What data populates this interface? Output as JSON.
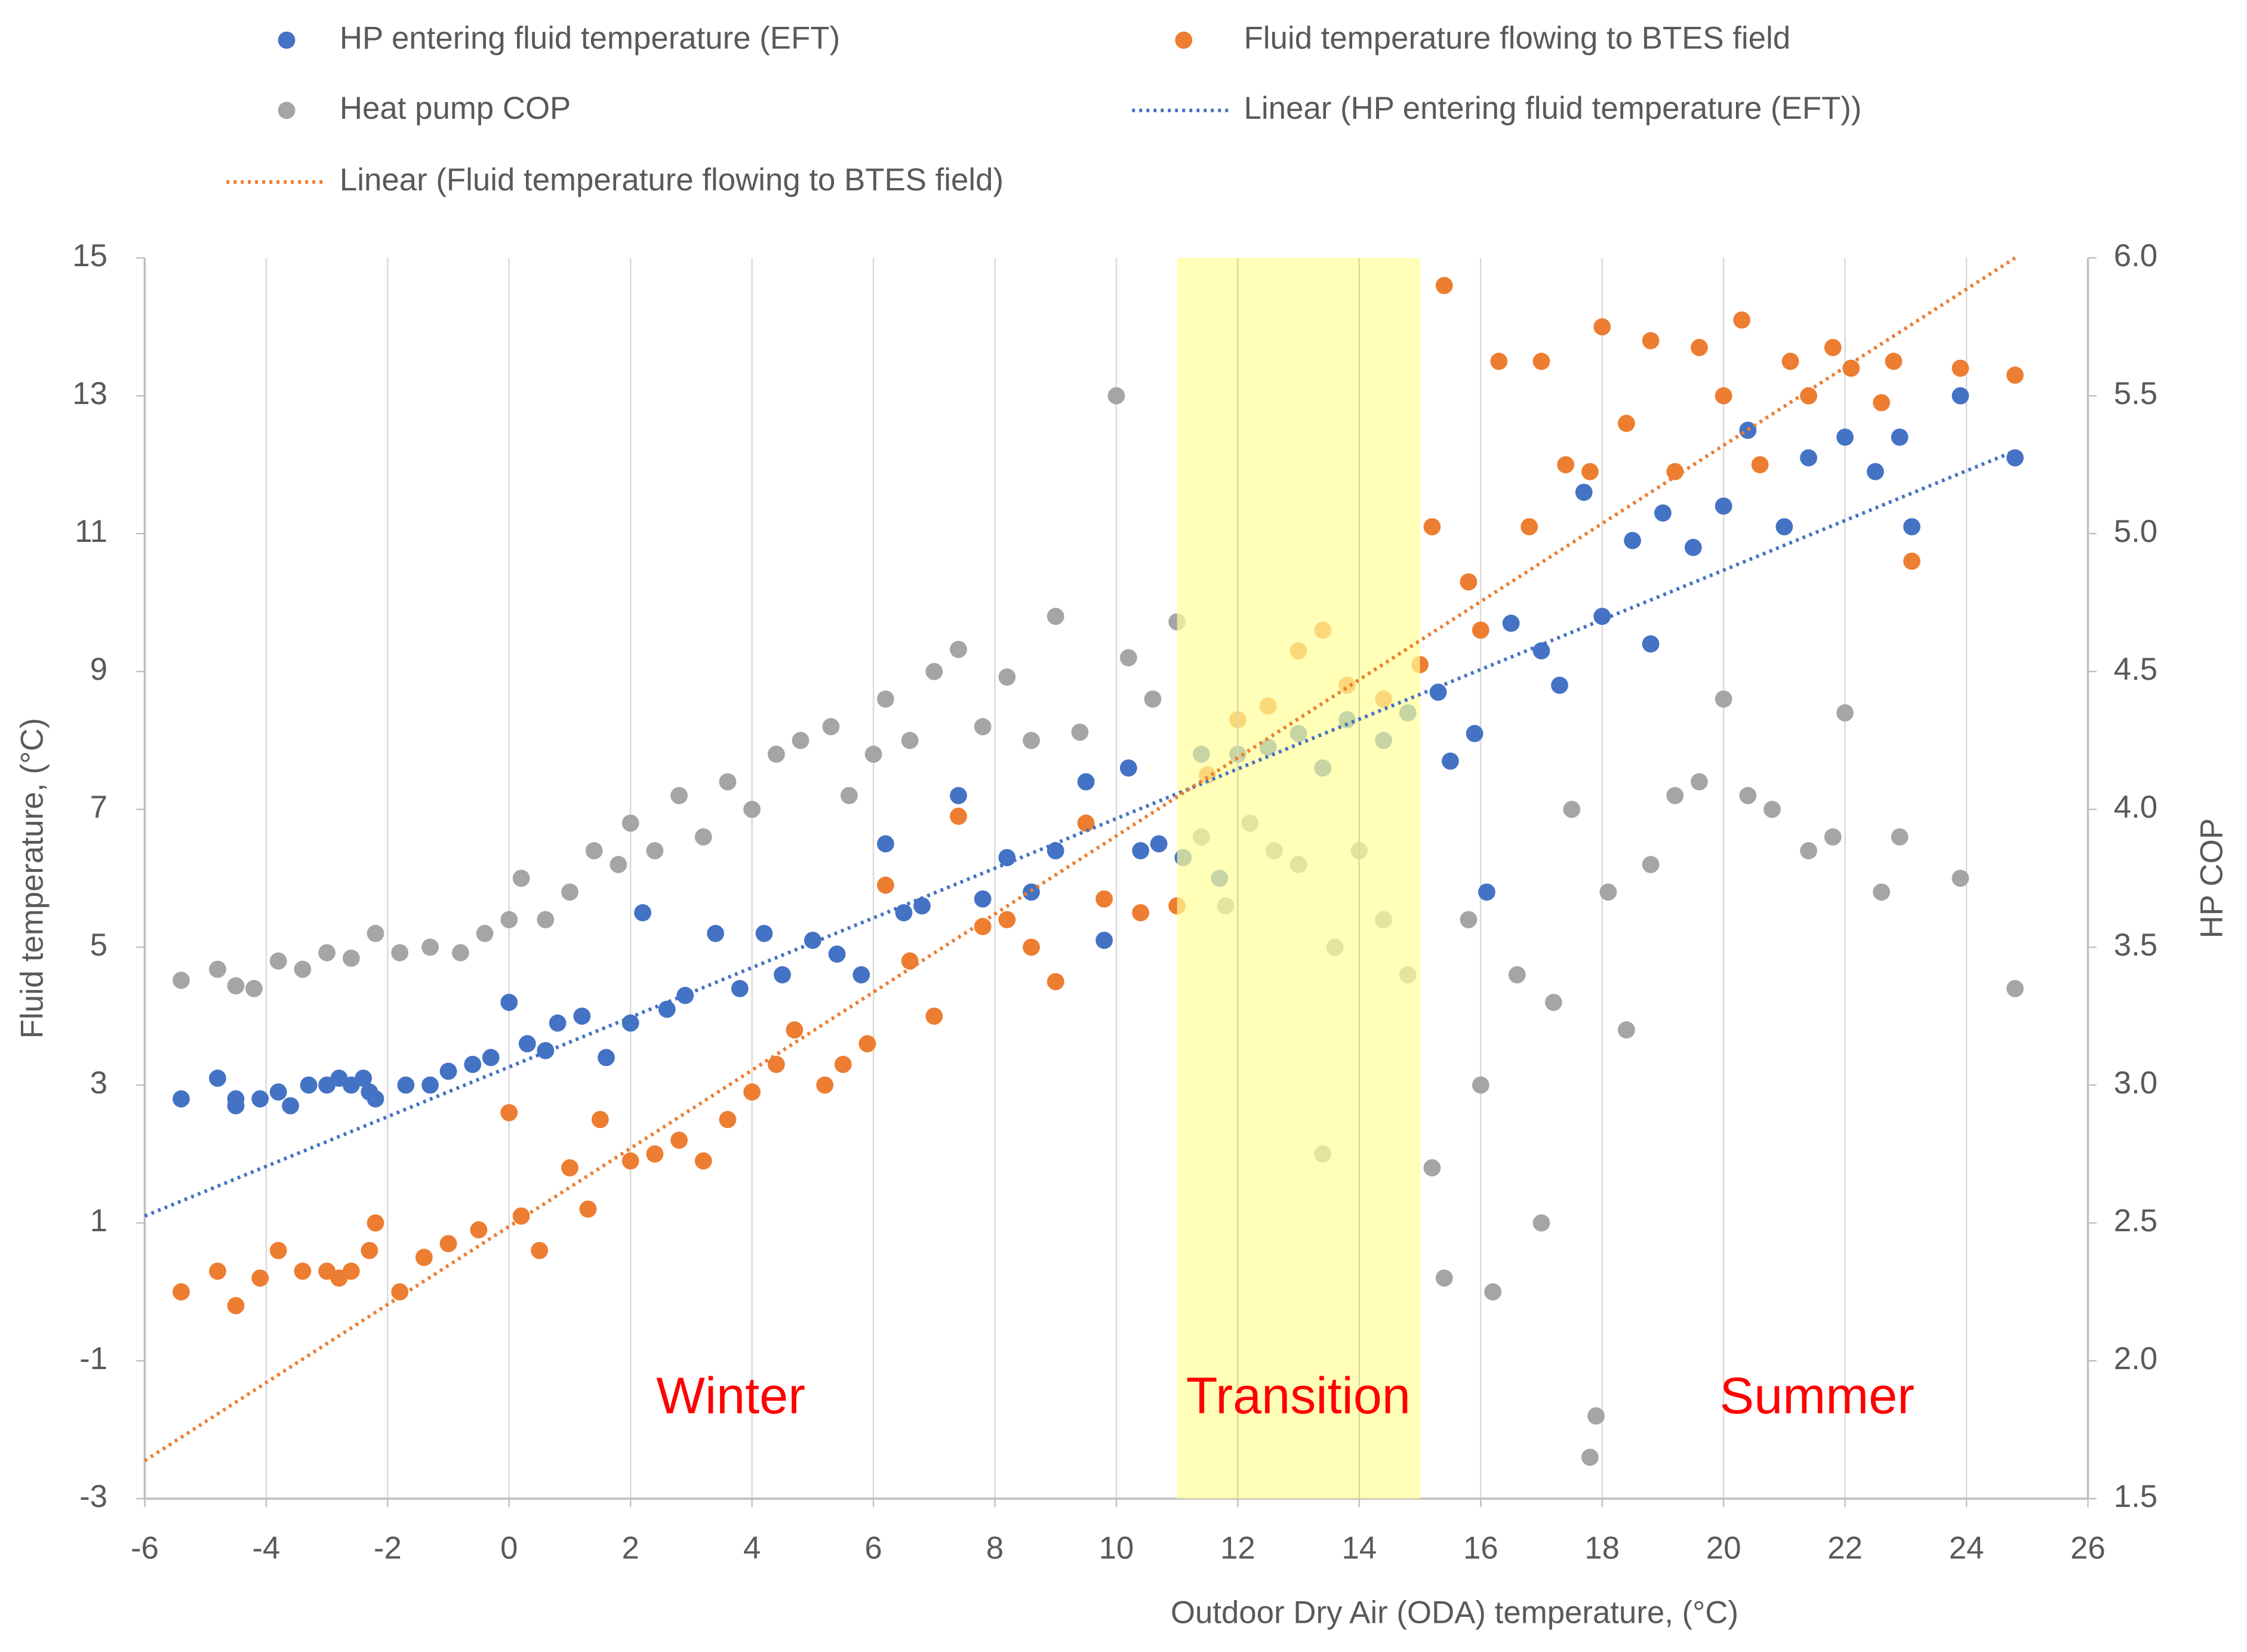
{
  "chart_data": {
    "type": "scatter",
    "xlabel": "Outdoor Dry Air (ODA) temperature, (°C)",
    "ylabel": "Fluid temperature, (°C)",
    "y2label": "HP COP",
    "xlim": [
      -6,
      26
    ],
    "xticks": [
      -6,
      -4,
      -2,
      0,
      2,
      4,
      6,
      8,
      10,
      12,
      14,
      16,
      18,
      20,
      22,
      24,
      26
    ],
    "ylim": [
      -3,
      15
    ],
    "yticks": [
      -3,
      -1,
      1,
      3,
      5,
      7,
      9,
      11,
      13,
      15
    ],
    "y2lim": [
      1.5,
      6
    ],
    "y2ticks": [
      1.5,
      {
        "value": 2,
        "label": "2.0"
      },
      2.5,
      {
        "value": 3,
        "label": "3.0"
      },
      3.5,
      {
        "value": 4,
        "label": "4.0"
      },
      4.5,
      {
        "value": 5,
        "label": "5.0"
      },
      5.5,
      {
        "value": 6,
        "label": "6.0"
      }
    ],
    "grid": "x",
    "shaded_region": {
      "xlim": [
        11,
        15
      ],
      "color": "#ffff99"
    },
    "annotations": [
      {
        "text": "Winter",
        "color": "#ff0000"
      },
      {
        "text": "Transition",
        "color": "#ff0000"
      },
      {
        "text": "Summer",
        "color": "#ff0000"
      }
    ],
    "series": [
      {
        "name": "HP entering fluid temperature (EFT)",
        "type": "scatter",
        "color": "#4472c4",
        "x": [
          -5.4,
          -4.8,
          -4.5,
          -4.5,
          -4.1,
          -3.8,
          -3.6,
          -3.3,
          -3.0,
          -2.8,
          -2.6,
          -2.4,
          -2.3,
          -2.2,
          -1.7,
          -1.3,
          -1.0,
          -0.6,
          -0.3,
          0,
          0.3,
          0.6,
          0.8,
          1.2,
          1.6,
          2.0,
          2.2,
          2.6,
          2.9,
          3.4,
          3.8,
          4.2,
          4.5,
          5.0,
          5.4,
          5.8,
          6.2,
          6.5,
          6.8,
          7.4,
          7.8,
          8.2,
          8.6,
          9.0,
          9.5,
          9.8,
          10.2,
          10.4,
          10.7,
          11.1,
          11.4,
          11.7,
          12.0,
          12.5,
          13.0,
          13.4,
          13.8,
          14.4,
          14.8,
          15.3,
          15.5,
          15.9,
          16.1,
          16.5,
          17.0,
          17.3,
          17.7,
          18.0,
          18.5,
          18.8,
          19.0,
          19.5,
          20.0,
          20.4,
          21.0,
          21.4,
          22.0,
          22.5,
          22.9,
          23.1,
          23.9,
          24.8
        ],
        "values": [
          2.8,
          3.1,
          2.7,
          2.8,
          2.8,
          2.9,
          2.7,
          3.0,
          3.0,
          3.1,
          3.0,
          3.1,
          2.9,
          2.8,
          3.0,
          3.0,
          3.2,
          3.3,
          3.4,
          4.2,
          3.6,
          3.5,
          3.9,
          4.0,
          3.4,
          3.9,
          5.5,
          4.1,
          4.3,
          5.2,
          4.4,
          5.2,
          4.6,
          5.1,
          4.9,
          4.6,
          6.5,
          5.5,
          5.6,
          7.2,
          5.7,
          6.3,
          5.8,
          6.4,
          7.4,
          5.1,
          7.6,
          6.4,
          6.5,
          6.3,
          7.8,
          6.0,
          7.8,
          7.9,
          8.1,
          7.6,
          8.3,
          8.0,
          8.4,
          8.7,
          7.7,
          8.1,
          5.8,
          9.7,
          9.3,
          8.8,
          11.6,
          9.8,
          10.9,
          9.4,
          11.3,
          10.8,
          11.4,
          12.5,
          11.1,
          12.1,
          12.4,
          11.9,
          12.4,
          11.1,
          13.0,
          12.1
        ]
      },
      {
        "name": "Fluid temperature flowing to BTES field",
        "type": "scatter",
        "color": "#ed7d31",
        "x": [
          -5.4,
          -4.8,
          -4.5,
          -4.1,
          -3.8,
          -3.4,
          -3.0,
          -2.8,
          -2.6,
          -2.3,
          -2.2,
          -1.8,
          -1.4,
          -1.0,
          -0.5,
          0,
          0.2,
          0.5,
          1.0,
          1.3,
          1.5,
          2.0,
          2.4,
          2.8,
          3.2,
          3.6,
          4.0,
          4.4,
          4.7,
          5.2,
          5.5,
          5.9,
          6.2,
          6.6,
          7.0,
          7.4,
          7.8,
          8.2,
          8.6,
          9.0,
          9.5,
          9.8,
          10.4,
          11.0,
          11.5,
          12.0,
          12.5,
          13.0,
          13.4,
          13.8,
          14.4,
          15.0,
          15.2,
          15.4,
          15.8,
          16.0,
          16.3,
          16.8,
          17.0,
          17.4,
          17.8,
          18.0,
          18.4,
          18.8,
          19.2,
          19.6,
          20.0,
          20.3,
          20.6,
          21.1,
          21.4,
          21.8,
          22.1,
          22.6,
          22.8,
          23.1,
          23.9,
          24.8
        ],
        "values": [
          0.0,
          0.3,
          -0.2,
          0.2,
          0.6,
          0.3,
          0.3,
          0.2,
          0.3,
          0.6,
          1.0,
          0.0,
          0.5,
          0.7,
          0.9,
          2.6,
          1.1,
          0.6,
          1.8,
          1.2,
          2.5,
          1.9,
          2.0,
          2.2,
          1.9,
          2.5,
          2.9,
          3.3,
          3.8,
          3.0,
          3.3,
          3.6,
          5.9,
          4.8,
          4.0,
          6.9,
          5.3,
          5.4,
          5.0,
          4.5,
          6.8,
          5.7,
          5.5,
          5.6,
          7.5,
          8.3,
          8.5,
          9.3,
          9.6,
          8.8,
          8.6,
          9.1,
          11.1,
          14.6,
          10.3,
          9.6,
          13.5,
          11.1,
          13.5,
          12.0,
          11.9,
          14.0,
          12.6,
          13.8,
          11.9,
          13.7,
          13.0,
          14.1,
          12.0,
          13.5,
          13.0,
          13.7,
          13.4,
          12.9,
          13.5,
          10.6,
          13.4,
          13.3
        ]
      },
      {
        "name": "Heat pump COP",
        "type": "scatter",
        "color": "#a5a5a5",
        "axis": "y2",
        "x": [
          -5.4,
          -4.8,
          -4.5,
          -4.2,
          -3.8,
          -3.4,
          -3.0,
          -2.6,
          -2.2,
          -1.8,
          -1.3,
          -0.8,
          -0.4,
          0,
          0.2,
          0.6,
          1.0,
          1.4,
          1.8,
          2.0,
          2.4,
          2.8,
          3.2,
          3.6,
          4.0,
          4.4,
          4.8,
          5.3,
          5.6,
          6.0,
          6.2,
          6.6,
          7.0,
          7.4,
          7.8,
          8.2,
          8.6,
          9.0,
          9.4,
          10.0,
          10.2,
          10.6,
          11.0,
          11.4,
          11.8,
          12.2,
          12.6,
          13.0,
          13.4,
          13.6,
          14.0,
          14.4,
          14.8,
          15.2,
          15.4,
          15.8,
          16.0,
          16.2,
          16.6,
          17.0,
          17.2,
          17.5,
          17.9,
          17.8,
          18.1,
          18.4,
          18.8,
          19.2,
          19.6,
          20.0,
          20.4,
          20.8,
          21.4,
          21.8,
          22.0,
          22.6,
          22.9,
          23.9,
          24.8
        ],
        "values": [
          3.38,
          3.42,
          3.36,
          3.35,
          3.45,
          3.42,
          3.48,
          3.46,
          3.55,
          3.48,
          3.5,
          3.48,
          3.55,
          3.6,
          3.75,
          3.6,
          3.7,
          3.85,
          3.8,
          3.95,
          3.85,
          4.05,
          3.9,
          4.1,
          4.0,
          4.2,
          4.25,
          4.3,
          4.05,
          4.2,
          4.4,
          4.25,
          4.5,
          4.58,
          4.3,
          4.48,
          4.25,
          4.7,
          4.28,
          5.5,
          4.55,
          4.4,
          4.68,
          3.9,
          3.65,
          3.95,
          3.85,
          3.8,
          2.75,
          3.5,
          3.85,
          3.6,
          3.4,
          2.7,
          2.3,
          3.6,
          3.0,
          2.25,
          3.4,
          2.5,
          3.3,
          4.0,
          1.8,
          1.65,
          3.7,
          3.2,
          3.8,
          4.05,
          4.1,
          4.4,
          4.05,
          4.0,
          3.85,
          3.9,
          4.35,
          3.7,
          3.9,
          3.75,
          3.35
        ]
      },
      {
        "name": "Linear (HP entering fluid temperature (EFT))",
        "type": "line",
        "style": "dotted",
        "color": "#4472c4",
        "x": [
          -6,
          24.8
        ],
        "values": [
          1.1,
          12.2
        ]
      },
      {
        "name": "Linear (Fluid temperature flowing to BTES field)",
        "type": "line",
        "style": "dotted",
        "color": "#ed7d31",
        "x": [
          -6,
          24.8
        ],
        "values": [
          -2.45,
          15
        ]
      }
    ]
  }
}
